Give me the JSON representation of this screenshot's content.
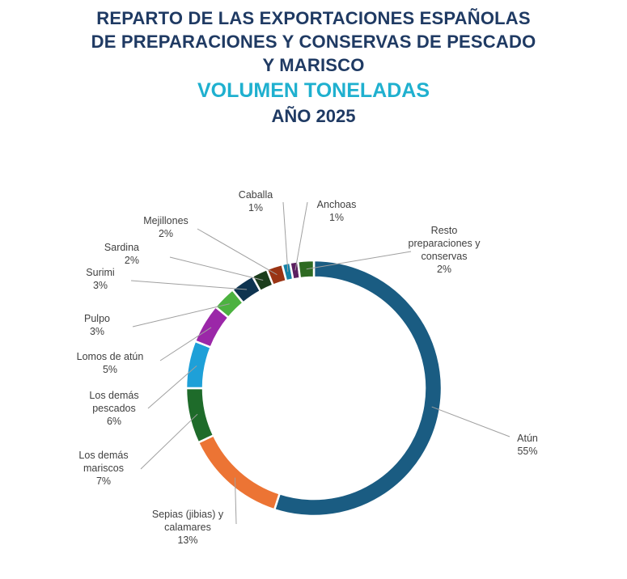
{
  "title_lines": [
    "REPARTO DE LAS EXPORTACIONES ESPAÑOLAS",
    "DE PREPARACIONES Y CONSERVAS DE PESCADO",
    "Y MARISCO"
  ],
  "subtitle": "VOLUMEN TONELADAS",
  "year_label": "AÑO 2025",
  "chart_data": {
    "type": "pie",
    "variant": "donut",
    "title": "REPARTO DE LAS EXPORTACIONES ESPAÑOLAS DE PREPARACIONES Y CONSERVAS DE PESCADO Y MARISCO",
    "subtitle": "VOLUMEN TONELADAS — AÑO 2025",
    "grid": false,
    "legend": "none (data labels with leader lines)",
    "slices": [
      {
        "name": "Atún",
        "value": 55,
        "value_label": "55%",
        "color": "#1a5c82"
      },
      {
        "name": "Sepias (jibias) y calamares",
        "value": 13,
        "value_label": "13%",
        "color": "#ec7434"
      },
      {
        "name": "Los demás mariscos",
        "value": 7,
        "value_label": "7%",
        "color": "#1e6b2a"
      },
      {
        "name": "Los demás pescados",
        "value": 6,
        "value_label": "6%",
        "color": "#1ea0d8"
      },
      {
        "name": "Lomos de atún",
        "value": 5,
        "value_label": "5%",
        "color": "#9b27a8"
      },
      {
        "name": "Pulpo",
        "value": 3,
        "value_label": "3%",
        "color": "#4cb240"
      },
      {
        "name": "Surimi",
        "value": 3,
        "value_label": "3%",
        "color": "#0e3450"
      },
      {
        "name": "Sardina",
        "value": 2,
        "value_label": "2%",
        "color": "#1c3d1c"
      },
      {
        "name": "Mejillones",
        "value": 2,
        "value_label": "2%",
        "color": "#9a3414"
      },
      {
        "name": "Caballa",
        "value": 1,
        "value_label": "1%",
        "color": "#1683a8"
      },
      {
        "name": "Anchoas",
        "value": 1,
        "value_label": "1%",
        "color": "#5c1f60"
      },
      {
        "name": "Resto preparaciones y conservas",
        "value": 2,
        "value_label": "2%",
        "color": "#2e6a22"
      }
    ]
  }
}
